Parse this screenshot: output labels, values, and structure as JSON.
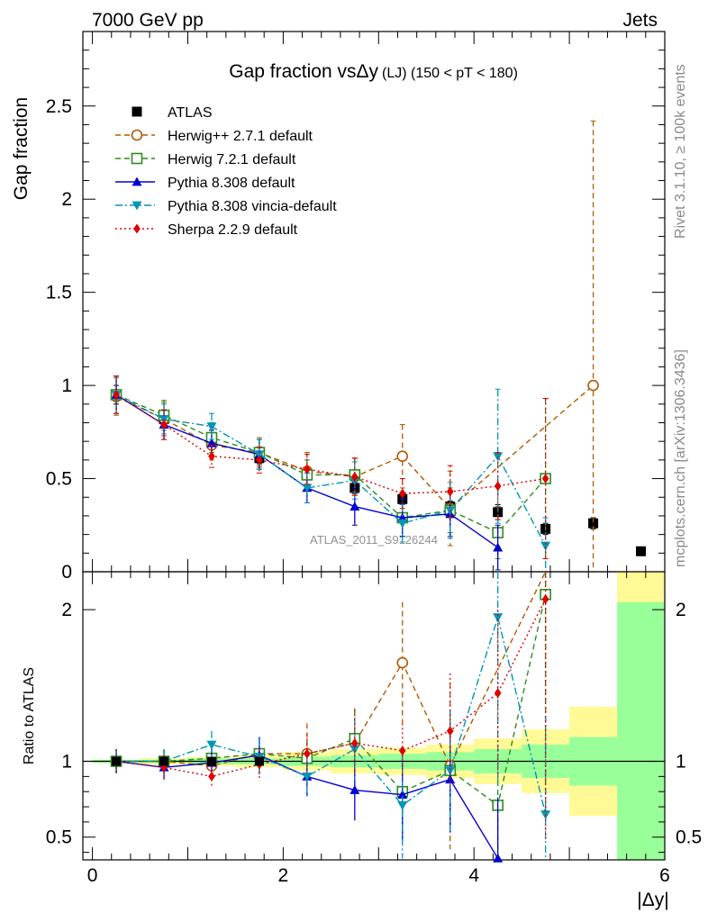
{
  "header": {
    "left": "7000 GeV pp",
    "right": "Jets"
  },
  "side_notes": {
    "rivet": "Rivet 3.1.10, ≥ 100k events",
    "mcplots": "mcplots.cern.ch [arXiv:1306.3436]"
  },
  "watermark": "ATLAS_2011_S9126244",
  "chart_data": [
    {
      "type": "scatter",
      "title": "Gap fraction vsΔy",
      "title_small": "(LJ) (150 < pT < 180)",
      "xlabel": "|Δy|",
      "ylabel": "Gap fraction",
      "xlim": [
        -0.1,
        6.0
      ],
      "ylim": [
        0,
        2.9
      ],
      "yticks": [
        "0",
        "0.5",
        "1",
        "1.5",
        "2",
        "2.5"
      ],
      "legend_position": "top-left",
      "x": [
        0.25,
        0.75,
        1.25,
        1.75,
        2.25,
        2.75,
        3.25,
        3.75,
        4.25,
        4.75,
        5.25,
        5.75
      ],
      "series": [
        {
          "name": "ATLAS",
          "color": "#000000",
          "marker": "square-filled",
          "line": "none",
          "values": [
            0.95,
            0.82,
            0.7,
            0.61,
            0.52,
            0.45,
            0.39,
            0.35,
            0.32,
            0.23,
            0.26,
            0.11
          ],
          "errors": [
            0.05,
            0.04,
            0.03,
            0.03,
            0.02,
            0.03,
            0.03,
            0.03,
            0.04,
            0.03,
            0.03,
            0.02
          ]
        },
        {
          "name": "Herwig++ 2.7.1 default",
          "color": "#b35900",
          "marker": "circle-open",
          "line": "dashed",
          "values": [
            0.94,
            0.82,
            0.68,
            0.64,
            0.54,
            0.51,
            0.62,
            0.34,
            null,
            null,
            1.0,
            null
          ],
          "errors": [
            0.1,
            0.09,
            0.08,
            0.08,
            0.1,
            0.1,
            0.17,
            0.2,
            null,
            null,
            1.42,
            null
          ]
        },
        {
          "name": "Herwig 7.2.1 default",
          "color": "#2e8b1e",
          "marker": "square-open",
          "line": "dashed",
          "values": [
            0.95,
            0.84,
            0.72,
            0.64,
            0.52,
            0.52,
            0.29,
            0.33,
            0.21,
            0.5,
            null,
            null
          ],
          "errors": [
            0.1,
            0.08,
            0.08,
            0.07,
            0.08,
            0.09,
            0.1,
            0.12,
            0.14,
            0.43,
            null,
            null
          ]
        },
        {
          "name": "Pythia 8.308 default",
          "color": "#0000d0",
          "marker": "triangle-up",
          "line": "solid",
          "values": [
            0.95,
            0.79,
            0.69,
            0.63,
            0.45,
            0.35,
            0.29,
            0.31,
            0.13,
            null,
            null,
            null
          ],
          "errors": [
            0.1,
            0.08,
            0.07,
            0.08,
            0.08,
            0.1,
            0.1,
            0.12,
            0.12,
            null,
            null,
            null
          ]
        },
        {
          "name": "Pythia 8.308 vincia-default",
          "color": "#0096b4",
          "marker": "triangle-down",
          "line": "dashdot",
          "values": [
            0.95,
            0.82,
            0.78,
            0.63,
            0.45,
            0.49,
            0.26,
            0.33,
            0.62,
            0.14,
            null,
            null
          ],
          "errors": [
            0.1,
            0.08,
            0.07,
            0.08,
            0.08,
            0.1,
            0.1,
            0.15,
            0.36,
            0.15,
            null,
            null
          ]
        },
        {
          "name": "Sherpa 2.2.9 default",
          "color": "#e00000",
          "marker": "diamond-filled",
          "line": "dotted",
          "values": [
            0.95,
            0.79,
            0.62,
            0.6,
            0.55,
            0.51,
            0.42,
            0.43,
            0.46,
            0.5,
            null,
            null
          ],
          "errors": [
            0.1,
            0.08,
            0.06,
            0.07,
            0.08,
            0.1,
            0.08,
            0.14,
            0.18,
            0.43,
            null,
            null
          ]
        }
      ]
    },
    {
      "type": "scatter",
      "ylabel": "Ratio to ATLAS",
      "xlabel": "|Δy|",
      "xlim": [
        -0.1,
        6.0
      ],
      "ylim": [
        0.35,
        2.25
      ],
      "yticks": [
        "0.5",
        "1",
        "2"
      ],
      "xticks": [
        "0",
        "2",
        "4",
        "6"
      ],
      "x": [
        0.25,
        0.75,
        1.25,
        1.75,
        2.25,
        2.75,
        3.25,
        3.75,
        4.25,
        4.75
      ],
      "bands": {
        "edges": [
          0,
          0.5,
          1.0,
          1.5,
          2.0,
          2.5,
          3.0,
          3.5,
          4.0,
          4.5,
          5.0,
          5.5,
          6.0
        ],
        "green": [
          0.01,
          0.01,
          0.02,
          0.02,
          0.03,
          0.04,
          0.05,
          0.06,
          0.08,
          0.11,
          0.16,
          1.05
        ],
        "yellow": [
          0.01,
          0.02,
          0.03,
          0.04,
          0.06,
          0.08,
          0.09,
          0.11,
          0.15,
          0.21,
          0.36,
          1.25
        ]
      },
      "series": [
        {
          "name": "Herwig++ 2.7.1 default",
          "values": [
            1.0,
            1.0,
            0.97,
            1.05,
            1.05,
            1.12,
            1.65,
            0.97,
            null,
            2.3
          ],
          "errors": [
            0.08,
            0.08,
            0.1,
            0.1,
            0.2,
            0.22,
            0.4,
            0.55,
            null,
            1.5
          ]
        },
        {
          "name": "Herwig 7.2.1 default",
          "values": [
            1.0,
            1.0,
            1.02,
            1.05,
            1.02,
            1.15,
            0.8,
            0.94,
            0.71,
            2.1
          ],
          "errors": [
            0.08,
            0.08,
            0.09,
            0.1,
            0.12,
            0.2,
            0.3,
            0.38,
            0.4,
            1.5
          ]
        },
        {
          "name": "Pythia 8.308 default",
          "values": [
            1.0,
            0.96,
            0.99,
            1.04,
            0.9,
            0.81,
            0.78,
            0.88,
            0.36,
            null
          ],
          "errors": [
            0.08,
            0.08,
            0.1,
            0.12,
            0.13,
            0.2,
            0.3,
            0.35,
            0.4,
            null
          ]
        },
        {
          "name": "Pythia 8.308 vincia-default",
          "values": [
            1.0,
            1.0,
            1.11,
            1.03,
            0.9,
            1.08,
            0.71,
            0.94,
            1.95,
            0.65
          ],
          "errors": [
            0.08,
            0.08,
            0.09,
            0.12,
            0.13,
            0.2,
            0.35,
            0.4,
            1.1,
            0.65
          ]
        },
        {
          "name": "Sherpa 2.2.9 default",
          "values": [
            1.0,
            0.96,
            0.9,
            0.98,
            1.05,
            1.12,
            1.07,
            1.2,
            1.45,
            2.07
          ],
          "errors": [
            0.08,
            0.08,
            0.07,
            0.1,
            0.13,
            0.22,
            0.18,
            0.38,
            0.55,
            1.6
          ]
        }
      ]
    }
  ]
}
